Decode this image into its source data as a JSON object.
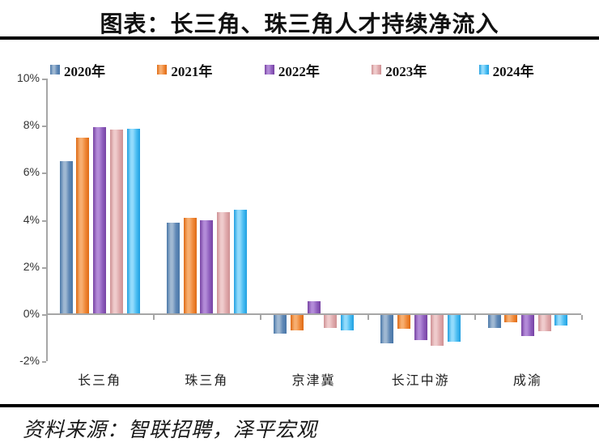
{
  "page": {
    "title": "图表：长三角、珠三角人才持续净流入",
    "source": "资料来源：智联招聘，泽平宏观"
  },
  "chart_data": {
    "type": "bar",
    "title": "图表：长三角、珠三角人才持续净流入",
    "categories": [
      "长三角",
      "珠三角",
      "京津冀",
      "长江中游",
      "成渝"
    ],
    "series": [
      {
        "name": "2020年",
        "values": [
          6.45,
          3.85,
          -0.8,
          -1.2,
          -0.55
        ],
        "color_mid": "#5E87B5",
        "color_light": "#9FB8D2",
        "color_dark": "#4A77A8"
      },
      {
        "name": "2021年",
        "values": [
          7.45,
          4.05,
          -0.65,
          -0.6,
          -0.3
        ],
        "color_mid": "#EF8838",
        "color_light": "#F7AE70",
        "color_dark": "#DE6A14"
      },
      {
        "name": "2022年",
        "values": [
          7.9,
          3.95,
          0.5,
          -1.05,
          -0.9
        ],
        "color_mid": "#8F5FBE",
        "color_light": "#B38BD8",
        "color_dark": "#7742A3"
      },
      {
        "name": "2023年",
        "values": [
          7.8,
          4.3,
          -0.55,
          -1.3,
          -0.7
        ],
        "color_mid": "#DFA9AC",
        "color_light": "#EFCBCC",
        "color_dark": "#CE9093"
      },
      {
        "name": "2024年",
        "values": [
          7.85,
          4.4,
          -0.65,
          -1.15,
          -0.45
        ],
        "color_mid": "#4ABDF2",
        "color_light": "#92DBFC",
        "color_dark": "#1F9FE0"
      }
    ],
    "xlabel": "",
    "ylabel": "",
    "y_ticks": [
      "10%",
      "8%",
      "6%",
      "4%",
      "2%",
      "0%",
      "-2%"
    ],
    "y_tick_values": [
      10,
      8,
      6,
      4,
      2,
      0,
      -2
    ],
    "ylim": [
      -2,
      10
    ],
    "legend_position": "top",
    "grid": false,
    "axis_color": "#A6A6A6"
  }
}
